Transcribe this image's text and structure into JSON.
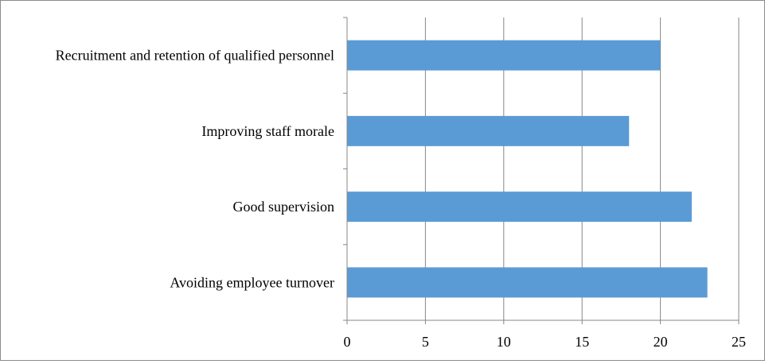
{
  "chart_data": {
    "type": "bar",
    "orientation": "horizontal",
    "categories": [
      "Recruitment and retention of qualified personnel",
      "Improving staff morale",
      "Good supervision",
      "Avoiding employee turnover"
    ],
    "values": [
      20,
      18,
      22,
      23
    ],
    "xlim": [
      0,
      25
    ],
    "xticks": [
      0,
      5,
      10,
      15,
      20,
      25
    ],
    "title": "",
    "xlabel": "",
    "ylabel": "",
    "grid": "vertical",
    "legend": "none",
    "colors": {
      "bar": "#5B9BD5",
      "gridline": "#878787",
      "axis": "#878787",
      "text": "#000000"
    }
  }
}
